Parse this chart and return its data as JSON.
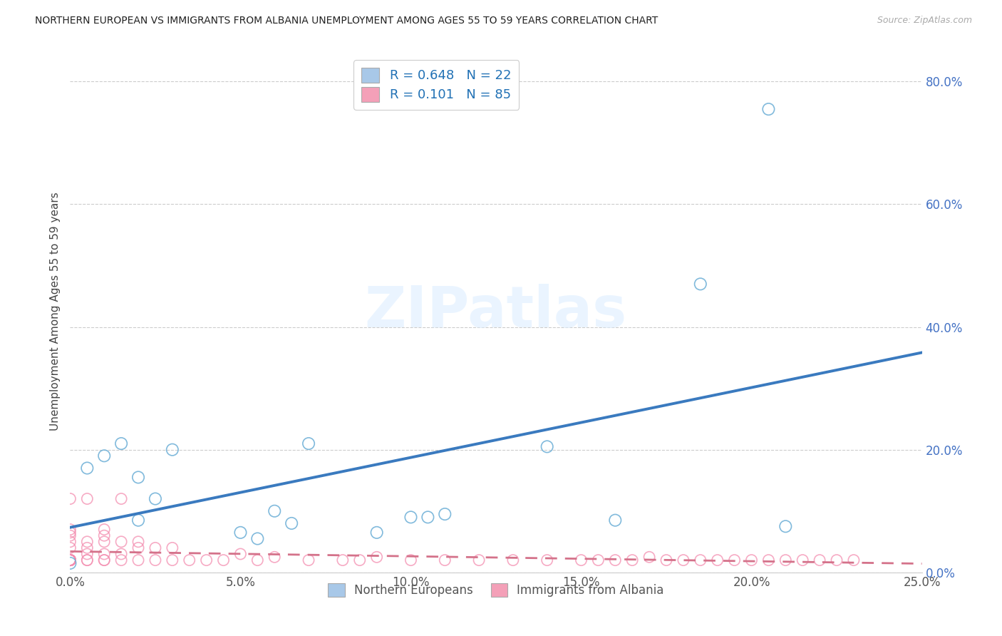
{
  "title": "NORTHERN EUROPEAN VS IMMIGRANTS FROM ALBANIA UNEMPLOYMENT AMONG AGES 55 TO 59 YEARS CORRELATION CHART",
  "source": "Source: ZipAtlas.com",
  "ylabel": "Unemployment Among Ages 55 to 59 years",
  "xlim": [
    0.0,
    0.25
  ],
  "ylim": [
    0.0,
    0.85
  ],
  "blue_R": 0.648,
  "blue_N": 22,
  "pink_R": 0.101,
  "pink_N": 85,
  "blue_color": "#a8c8e8",
  "pink_color": "#f4a0b8",
  "blue_edge_color": "#6baed6",
  "pink_edge_color": "#f48fb1",
  "blue_line_color": "#3a7abf",
  "pink_line_color": "#d4728a",
  "legend_label_blue": "Northern Europeans",
  "legend_label_pink": "Immigrants from Albania",
  "blue_scatter_x": [
    0.0,
    0.005,
    0.01,
    0.015,
    0.02,
    0.02,
    0.025,
    0.03,
    0.05,
    0.055,
    0.06,
    0.065,
    0.07,
    0.09,
    0.1,
    0.105,
    0.11,
    0.14,
    0.16,
    0.185,
    0.205,
    0.21
  ],
  "blue_scatter_y": [
    0.015,
    0.17,
    0.19,
    0.21,
    0.085,
    0.155,
    0.12,
    0.2,
    0.065,
    0.055,
    0.1,
    0.08,
    0.21,
    0.065,
    0.09,
    0.09,
    0.095,
    0.205,
    0.085,
    0.47,
    0.755,
    0.075
  ],
  "pink_scatter_x": [
    0.0,
    0.0,
    0.0,
    0.0,
    0.0,
    0.0,
    0.0,
    0.0,
    0.0,
    0.0,
    0.0,
    0.0,
    0.0,
    0.0,
    0.0,
    0.0,
    0.0,
    0.0,
    0.0,
    0.0,
    0.0,
    0.0,
    0.0,
    0.0,
    0.0,
    0.0,
    0.0,
    0.0,
    0.0,
    0.0,
    0.005,
    0.005,
    0.005,
    0.005,
    0.005,
    0.005,
    0.01,
    0.01,
    0.01,
    0.01,
    0.01,
    0.01,
    0.015,
    0.015,
    0.015,
    0.015,
    0.02,
    0.02,
    0.02,
    0.025,
    0.025,
    0.03,
    0.03,
    0.035,
    0.04,
    0.045,
    0.05,
    0.055,
    0.06,
    0.07,
    0.08,
    0.085,
    0.09,
    0.1,
    0.11,
    0.12,
    0.13,
    0.14,
    0.15,
    0.155,
    0.16,
    0.165,
    0.17,
    0.175,
    0.18,
    0.185,
    0.19,
    0.195,
    0.2,
    0.205,
    0.21,
    0.215,
    0.22,
    0.225,
    0.23
  ],
  "pink_scatter_y": [
    0.02,
    0.02,
    0.02,
    0.02,
    0.02,
    0.02,
    0.02,
    0.02,
    0.02,
    0.02,
    0.02,
    0.02,
    0.02,
    0.02,
    0.02,
    0.02,
    0.02,
    0.02,
    0.02,
    0.02,
    0.02,
    0.02,
    0.02,
    0.02,
    0.04,
    0.05,
    0.06,
    0.065,
    0.07,
    0.12,
    0.02,
    0.02,
    0.03,
    0.04,
    0.05,
    0.12,
    0.02,
    0.02,
    0.03,
    0.05,
    0.06,
    0.07,
    0.02,
    0.03,
    0.05,
    0.12,
    0.02,
    0.04,
    0.05,
    0.02,
    0.04,
    0.02,
    0.04,
    0.02,
    0.02,
    0.02,
    0.03,
    0.02,
    0.025,
    0.02,
    0.02,
    0.02,
    0.025,
    0.02,
    0.02,
    0.02,
    0.02,
    0.02,
    0.02,
    0.02,
    0.02,
    0.02,
    0.025,
    0.02,
    0.02,
    0.02,
    0.02,
    0.02,
    0.02,
    0.02,
    0.02,
    0.02,
    0.02,
    0.02,
    0.02
  ]
}
